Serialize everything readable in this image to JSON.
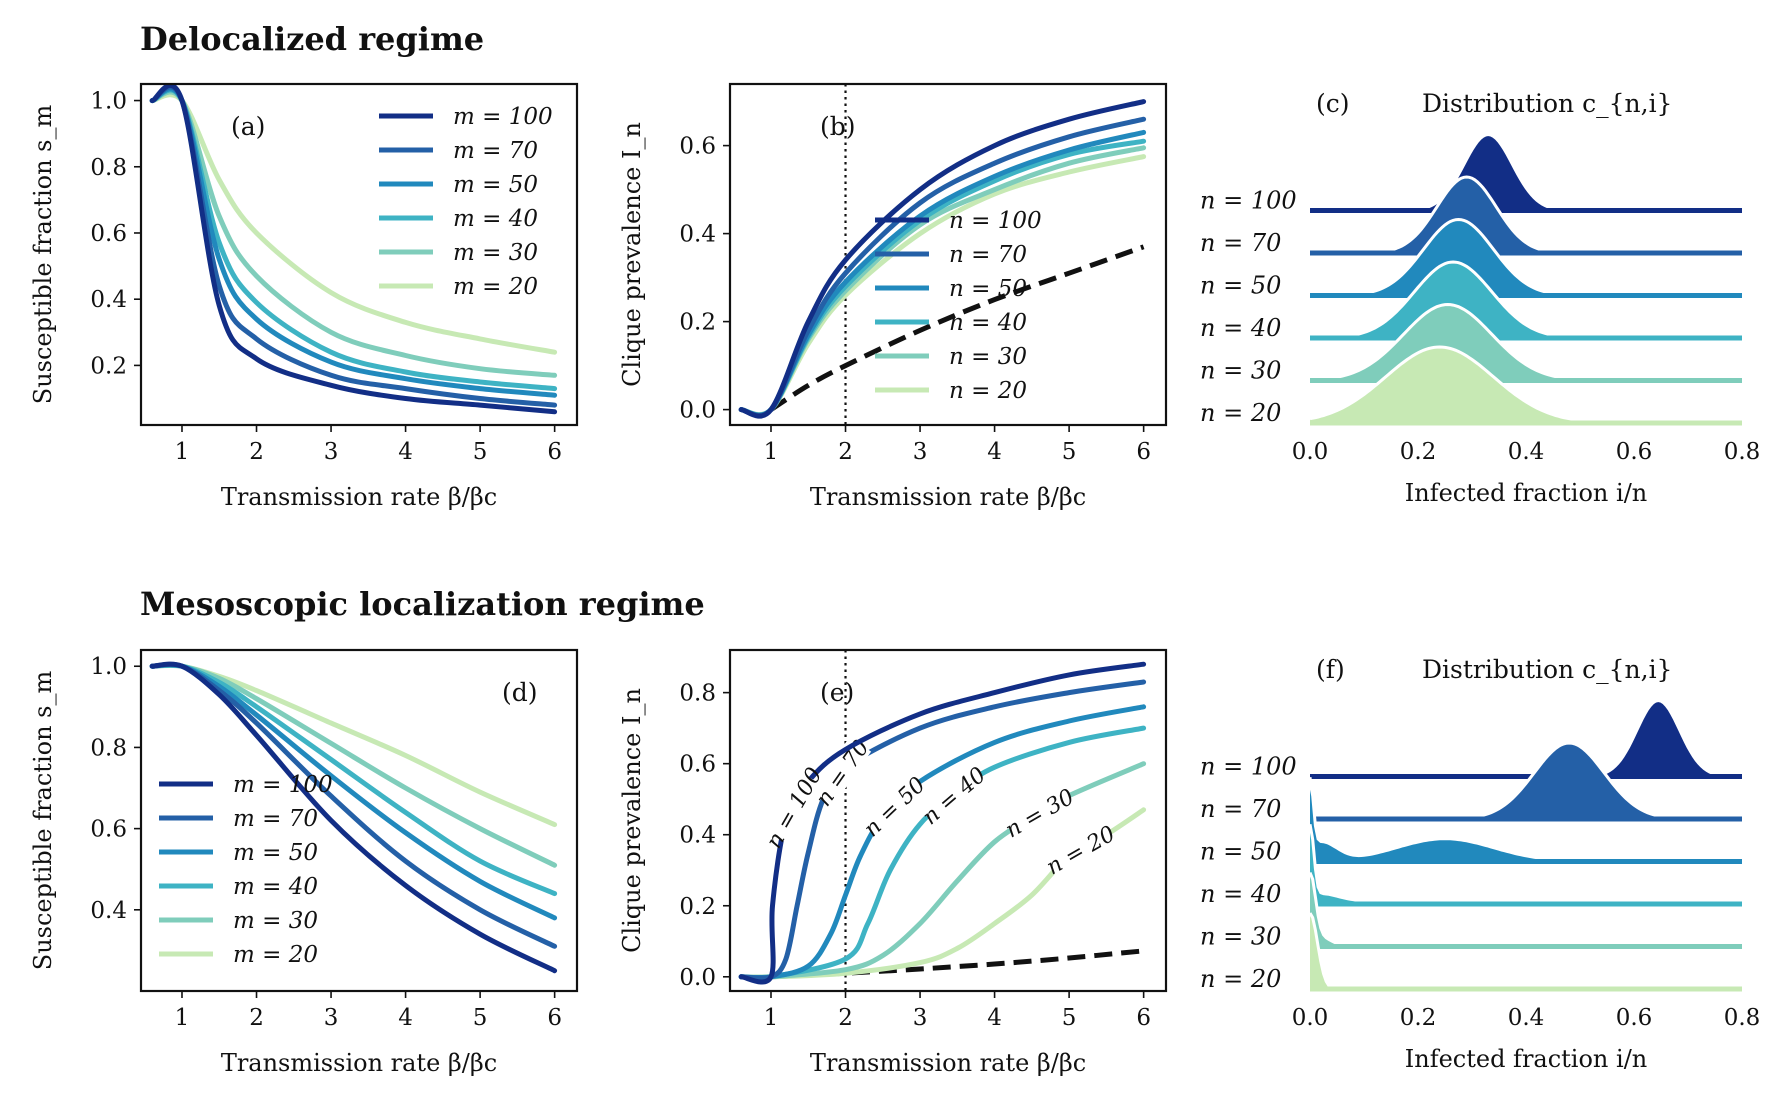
{
  "titles": {
    "top": "Delocalized regime",
    "bottom": "Mesoscopic localization regime"
  },
  "colors": {
    "100": "#122e86",
    "70": "#2460a7",
    "50": "#2189bd",
    "40": "#3eb3c4",
    "30": "#7fcdbb",
    "20": "#c7e9b4",
    "threshold": "#111111"
  },
  "chart_data": [
    {
      "panel": "(a)",
      "type": "line",
      "xlabel": "Transmission rate β/βc",
      "ylabel": "Susceptible fraction s_m",
      "xlim": [
        0.45,
        6.3
      ],
      "ylim": [
        0.02,
        1.05
      ],
      "xticks": [
        "1",
        "2",
        "3",
        "4",
        "5",
        "6"
      ],
      "yticks": [
        "0.2",
        "0.4",
        "0.6",
        "0.8",
        "1.0"
      ],
      "legend_position": "top-right",
      "series": [
        {
          "name": "m = 100",
          "key": "100",
          "x": [
            0.6,
            1.0,
            1.5,
            2.0,
            3.0,
            4.0,
            5.0,
            6.0
          ],
          "y": [
            1.0,
            1.0,
            0.38,
            0.22,
            0.14,
            0.1,
            0.08,
            0.06
          ]
        },
        {
          "name": "m = 70",
          "key": "70",
          "x": [
            0.6,
            1.0,
            1.5,
            2.0,
            3.0,
            4.0,
            5.0,
            6.0
          ],
          "y": [
            1.0,
            1.0,
            0.44,
            0.28,
            0.17,
            0.13,
            0.1,
            0.08
          ]
        },
        {
          "name": "m = 50",
          "key": "50",
          "x": [
            0.6,
            1.0,
            1.5,
            2.0,
            3.0,
            4.0,
            5.0,
            6.0
          ],
          "y": [
            1.0,
            1.0,
            0.52,
            0.34,
            0.21,
            0.16,
            0.13,
            0.11
          ]
        },
        {
          "name": "m = 40",
          "key": "40",
          "x": [
            0.6,
            1.0,
            1.5,
            2.0,
            3.0,
            4.0,
            5.0,
            6.0
          ],
          "y": [
            1.0,
            1.0,
            0.57,
            0.39,
            0.24,
            0.18,
            0.15,
            0.13
          ]
        },
        {
          "name": "m = 30",
          "key": "30",
          "x": [
            0.6,
            1.0,
            1.5,
            2.0,
            3.0,
            4.0,
            5.0,
            6.0
          ],
          "y": [
            1.0,
            1.0,
            0.65,
            0.47,
            0.3,
            0.23,
            0.19,
            0.17
          ]
        },
        {
          "name": "m = 20",
          "key": "20",
          "x": [
            0.6,
            1.0,
            1.5,
            2.0,
            3.0,
            4.0,
            5.0,
            6.0
          ],
          "y": [
            1.0,
            1.0,
            0.76,
            0.6,
            0.42,
            0.33,
            0.28,
            0.24
          ]
        }
      ]
    },
    {
      "panel": "(b)",
      "type": "line",
      "xlabel": "Transmission rate β/βc",
      "ylabel": "Clique prevalence I_n",
      "xlim": [
        0.45,
        6.3
      ],
      "ylim": [
        -0.035,
        0.74
      ],
      "xticks": [
        "1",
        "2",
        "3",
        "4",
        "5",
        "6"
      ],
      "yticks": [
        "0.0",
        "0.2",
        "0.4",
        "0.6"
      ],
      "vline_x": 2,
      "legend_position": "center-right",
      "series": [
        {
          "name": "n = 100",
          "key": "100",
          "x": [
            0.6,
            1.0,
            1.5,
            2.0,
            3.0,
            4.0,
            5.0,
            6.0
          ],
          "y": [
            0,
            0,
            0.2,
            0.34,
            0.5,
            0.6,
            0.66,
            0.7
          ]
        },
        {
          "name": "n = 70",
          "key": "70",
          "x": [
            0.6,
            1.0,
            1.5,
            2.0,
            3.0,
            4.0,
            5.0,
            6.0
          ],
          "y": [
            0,
            0,
            0.18,
            0.31,
            0.47,
            0.56,
            0.62,
            0.66
          ]
        },
        {
          "name": "n = 50",
          "key": "50",
          "x": [
            0.6,
            1.0,
            1.5,
            2.0,
            3.0,
            4.0,
            5.0,
            6.0
          ],
          "y": [
            0,
            0,
            0.17,
            0.29,
            0.44,
            0.53,
            0.59,
            0.63
          ]
        },
        {
          "name": "n = 40",
          "key": "40",
          "x": [
            0.6,
            1.0,
            1.5,
            2.0,
            3.0,
            4.0,
            5.0,
            6.0
          ],
          "y": [
            0,
            0,
            0.165,
            0.28,
            0.43,
            0.52,
            0.58,
            0.61
          ]
        },
        {
          "name": "n = 30",
          "key": "30",
          "x": [
            0.6,
            1.0,
            1.5,
            2.0,
            3.0,
            4.0,
            5.0,
            6.0
          ],
          "y": [
            0,
            0,
            0.16,
            0.27,
            0.42,
            0.5,
            0.56,
            0.595
          ]
        },
        {
          "name": "n = 20",
          "key": "20",
          "x": [
            0.6,
            1.0,
            1.5,
            2.0,
            3.0,
            4.0,
            5.0,
            6.0
          ],
          "y": [
            0,
            0,
            0.15,
            0.26,
            0.4,
            0.49,
            0.54,
            0.575
          ]
        },
        {
          "key": "threshold",
          "dashed": true,
          "x": [
            1.0,
            1.5,
            2.0,
            3.0,
            4.0,
            5.0,
            6.0
          ],
          "y": [
            0,
            0.055,
            0.1,
            0.18,
            0.25,
            0.31,
            0.37
          ]
        }
      ]
    },
    {
      "panel": "(c)",
      "type": "area",
      "title": "Distribution c_{n,i}",
      "xlabel": "Infected fraction i/n",
      "xlim": [
        0.0,
        0.8
      ],
      "xticks": [
        "0.0",
        "0.2",
        "0.4",
        "0.6",
        "0.8"
      ],
      "series": [
        {
          "name": "n = 100",
          "key": "100",
          "peak": 0.33,
          "width": 0.045,
          "amplitude": 1.0,
          "extra": []
        },
        {
          "name": "n = 70",
          "key": "70",
          "peak": 0.29,
          "width": 0.055,
          "amplitude": 1.0,
          "extra": []
        },
        {
          "name": "n = 50",
          "key": "50",
          "peak": 0.275,
          "width": 0.065,
          "amplitude": 1.0,
          "extra": []
        },
        {
          "name": "n = 40",
          "key": "40",
          "peak": 0.265,
          "width": 0.072,
          "amplitude": 1.0,
          "extra": []
        },
        {
          "name": "n = 30",
          "key": "30",
          "peak": 0.255,
          "width": 0.082,
          "amplitude": 1.0,
          "extra": []
        },
        {
          "name": "n = 20",
          "key": "20",
          "peak": 0.24,
          "width": 0.1,
          "amplitude": 1.0,
          "extra": []
        }
      ]
    },
    {
      "panel": "(d)",
      "type": "line",
      "xlabel": "Transmission rate β/βc",
      "ylabel": "Susceptible fraction s_m",
      "xlim": [
        0.45,
        6.3
      ],
      "ylim": [
        0.2,
        1.04
      ],
      "xticks": [
        "1",
        "2",
        "3",
        "4",
        "5",
        "6"
      ],
      "yticks": [
        "0.4",
        "0.6",
        "0.8",
        "1.0"
      ],
      "legend_position": "lower-left",
      "series": [
        {
          "name": "m = 100",
          "key": "100",
          "x": [
            0.6,
            1.0,
            1.5,
            2.0,
            3.0,
            4.0,
            5.0,
            6.0
          ],
          "y": [
            1.0,
            1.0,
            0.93,
            0.83,
            0.62,
            0.46,
            0.34,
            0.25
          ]
        },
        {
          "name": "m = 70",
          "key": "70",
          "x": [
            0.6,
            1.0,
            1.5,
            2.0,
            3.0,
            4.0,
            5.0,
            6.0
          ],
          "y": [
            1.0,
            1.0,
            0.94,
            0.86,
            0.68,
            0.52,
            0.4,
            0.31
          ]
        },
        {
          "name": "m = 50",
          "key": "50",
          "x": [
            0.6,
            1.0,
            1.5,
            2.0,
            3.0,
            4.0,
            5.0,
            6.0
          ],
          "y": [
            1.0,
            1.0,
            0.95,
            0.88,
            0.73,
            0.59,
            0.47,
            0.38
          ]
        },
        {
          "name": "m = 40",
          "key": "40",
          "x": [
            0.6,
            1.0,
            1.5,
            2.0,
            3.0,
            4.0,
            5.0,
            6.0
          ],
          "y": [
            1.0,
            1.0,
            0.96,
            0.9,
            0.77,
            0.64,
            0.52,
            0.44
          ]
        },
        {
          "name": "m = 30",
          "key": "30",
          "x": [
            0.6,
            1.0,
            1.5,
            2.0,
            3.0,
            4.0,
            5.0,
            6.0
          ],
          "y": [
            1.0,
            1.0,
            0.97,
            0.92,
            0.81,
            0.7,
            0.6,
            0.51
          ]
        },
        {
          "name": "m = 20",
          "key": "20",
          "x": [
            0.6,
            1.0,
            1.5,
            2.0,
            3.0,
            4.0,
            5.0,
            6.0
          ],
          "y": [
            1.0,
            1.0,
            0.975,
            0.94,
            0.86,
            0.78,
            0.69,
            0.61
          ]
        }
      ]
    },
    {
      "panel": "(e)",
      "type": "line",
      "xlabel": "Transmission rate β/βc",
      "ylabel": "Clique prevalence I_n",
      "xlim": [
        0.45,
        6.3
      ],
      "ylim": [
        -0.04,
        0.92
      ],
      "xticks": [
        "1",
        "2",
        "3",
        "4",
        "5",
        "6"
      ],
      "yticks": [
        "0.0",
        "0.2",
        "0.4",
        "0.6",
        "0.8"
      ],
      "vline_x": 2,
      "series": [
        {
          "name": "n = 100",
          "key": "100",
          "label_at": 1.3,
          "x": [
            0.6,
            1.0,
            1.02,
            1.2,
            1.5,
            2.0,
            3.0,
            4.0,
            5.0,
            6.0
          ],
          "y": [
            0,
            0,
            0.2,
            0.44,
            0.55,
            0.64,
            0.74,
            0.8,
            0.85,
            0.88
          ]
        },
        {
          "name": "n = 70",
          "key": "70",
          "label_at": 1.95,
          "x": [
            0.6,
            1.0,
            1.2,
            1.35,
            1.5,
            1.7,
            2.0,
            3.0,
            4.0,
            5.0,
            6.0
          ],
          "y": [
            0,
            0,
            0.05,
            0.2,
            0.35,
            0.5,
            0.59,
            0.7,
            0.76,
            0.8,
            0.83
          ]
        },
        {
          "name": "n = 50",
          "key": "50",
          "label_at": 2.65,
          "x": [
            0.6,
            1.0,
            1.5,
            1.8,
            2.0,
            2.2,
            2.5,
            3.0,
            4.0,
            5.0,
            6.0
          ],
          "y": [
            0,
            0,
            0.03,
            0.12,
            0.23,
            0.34,
            0.45,
            0.55,
            0.66,
            0.72,
            0.76
          ]
        },
        {
          "name": "n = 40",
          "key": "40",
          "label_at": 3.45,
          "x": [
            0.6,
            1.0,
            2.0,
            2.3,
            2.6,
            3.0,
            3.5,
            4.0,
            5.0,
            6.0
          ],
          "y": [
            0,
            0,
            0.05,
            0.15,
            0.3,
            0.43,
            0.52,
            0.59,
            0.66,
            0.7
          ]
        },
        {
          "name": "n = 30",
          "key": "30",
          "label_at": 4.6,
          "x": [
            0.6,
            1.0,
            2.0,
            2.5,
            3.0,
            3.5,
            4.0,
            4.5,
            5.0,
            6.0
          ],
          "y": [
            0,
            0,
            0.02,
            0.06,
            0.15,
            0.27,
            0.38,
            0.45,
            0.51,
            0.6
          ]
        },
        {
          "name": "n = 20",
          "key": "20",
          "label_at": 5.15,
          "x": [
            0.6,
            1.0,
            2.0,
            3.0,
            3.5,
            4.0,
            4.5,
            5.0,
            5.5,
            6.0
          ],
          "y": [
            0,
            0,
            0.01,
            0.04,
            0.08,
            0.15,
            0.23,
            0.34,
            0.4,
            0.47
          ]
        },
        {
          "key": "threshold",
          "dashed": true,
          "x": [
            1.0,
            2.0,
            3.0,
            4.0,
            5.0,
            6.0
          ],
          "y": [
            0,
            0.01,
            0.022,
            0.036,
            0.053,
            0.073
          ]
        }
      ]
    },
    {
      "panel": "(f)",
      "type": "area",
      "title": "Distribution c_{n,i}",
      "xlabel": "Infected fraction i/n",
      "xlim": [
        0.0,
        0.8
      ],
      "xticks": [
        "0.0",
        "0.2",
        "0.4",
        "0.6",
        "0.8"
      ],
      "series": [
        {
          "name": "n = 100",
          "key": "100",
          "peak": 0.645,
          "width": 0.04,
          "amplitude": 1.0,
          "extra": []
        },
        {
          "name": "n = 70",
          "key": "70",
          "peak": 0.48,
          "width": 0.065,
          "amplitude": 1.0,
          "extra": [
            {
              "peak": 0.0,
              "width": 0.004,
              "amplitude": 0.55
            }
          ]
        },
        {
          "name": "n = 50",
          "key": "50",
          "peak": 0.25,
          "width": 0.09,
          "amplitude": 0.3,
          "extra": [
            {
              "peak": 0.0,
              "width": 0.006,
              "amplitude": 0.9
            },
            {
              "peak": 0.02,
              "width": 0.03,
              "amplitude": 0.25
            }
          ]
        },
        {
          "name": "n = 40",
          "key": "40",
          "peak": 0.0,
          "width": 0.007,
          "amplitude": 0.95,
          "extra": [
            {
              "peak": 0.02,
              "width": 0.03,
              "amplitude": 0.12
            },
            {
              "peak": 0.08,
              "width": 0.04,
              "amplitude": 0.04
            }
          ]
        },
        {
          "name": "n = 30",
          "key": "30",
          "peak": 0.0,
          "width": 0.01,
          "amplitude": 0.9,
          "extra": [
            {
              "peak": 0.02,
              "width": 0.02,
              "amplitude": 0.12
            }
          ]
        },
        {
          "name": "n = 20",
          "key": "20",
          "peak": 0.0,
          "width": 0.014,
          "amplitude": 1.0,
          "extra": []
        }
      ]
    }
  ]
}
